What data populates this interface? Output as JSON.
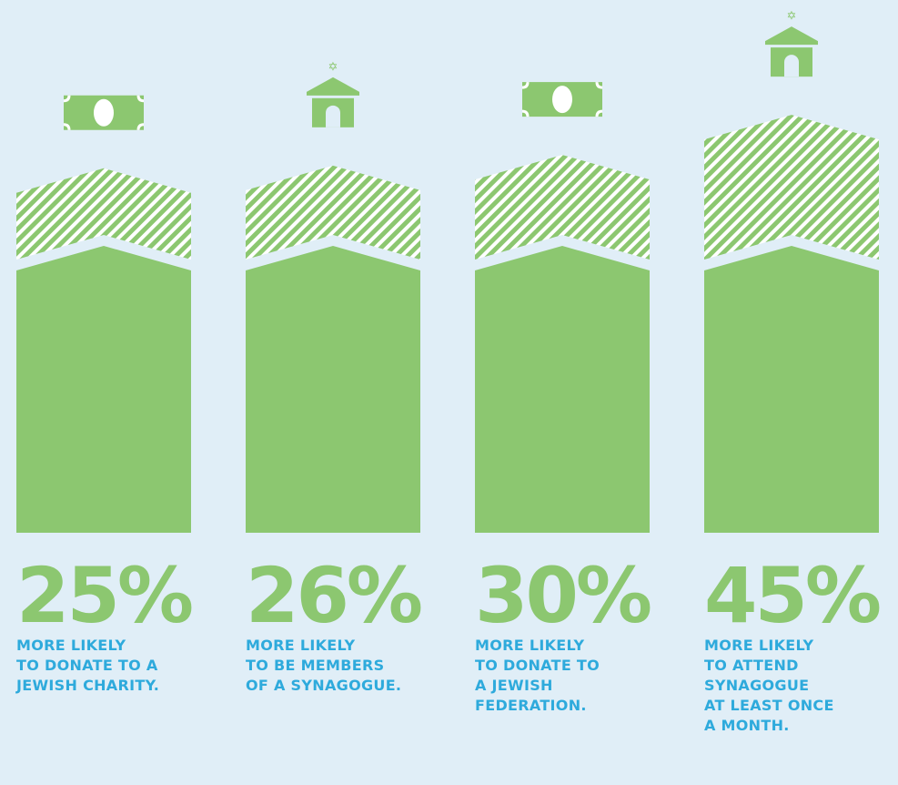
{
  "chart_data": {
    "type": "bar",
    "categories": [
      "MORE LIKELY\nTO DONATE TO A\nJEWISH CHARITY.",
      "MORE LIKELY\nTO BE MEMBERS\nOF A SYNAGOGUE.",
      "MORE LIKELY\nTO DONATE TO\nA JEWISH\nFEDERATION.",
      "MORE LIKELY\nTO ATTEND\nSYNAGOGUE\nAT LEAST ONCE\nA MONTH."
    ],
    "values": [
      25,
      26,
      30,
      45
    ],
    "value_labels": [
      "25%",
      "26%",
      "30%",
      "45%"
    ],
    "color": "#8cc770"
  }
}
